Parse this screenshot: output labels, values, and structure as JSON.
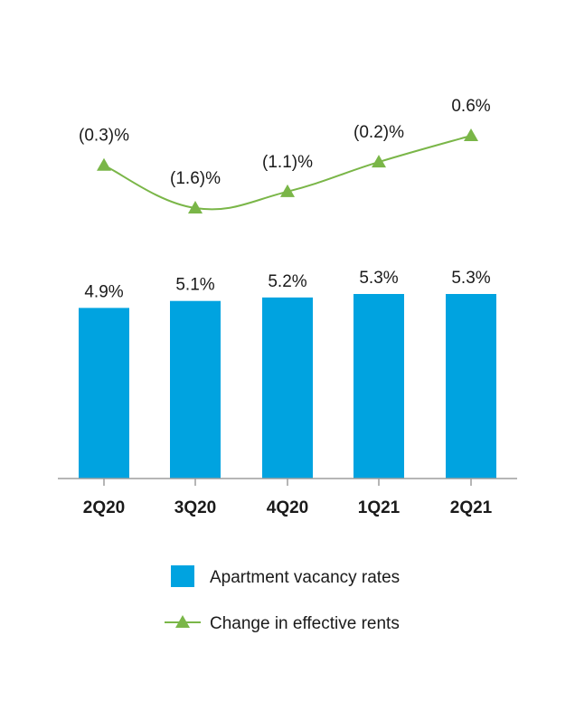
{
  "chart_data": {
    "type": "bar",
    "categories": [
      "2Q20",
      "3Q20",
      "4Q20",
      "1Q21",
      "2Q21"
    ],
    "series": [
      {
        "name": "Apartment vacancy rates",
        "type": "bar",
        "values": [
          4.9,
          5.1,
          5.2,
          5.3,
          5.3
        ],
        "labels": [
          "4.9%",
          "5.1%",
          "5.2%",
          "5.3%",
          "5.3%"
        ],
        "color": "#00a3e0"
      },
      {
        "name": "Change in effective rents",
        "type": "line",
        "marker": "triangle",
        "values": [
          -0.3,
          -1.6,
          -1.1,
          -0.2,
          0.6
        ],
        "labels": [
          "(0.3)%",
          "(1.6)%",
          "(1.1)%",
          "(0.2)%",
          "0.6%"
        ],
        "color": "#7ab648"
      }
    ],
    "bar_ylim": [
      0,
      5.3
    ],
    "line_ylim": [
      -1.6,
      0.6
    ],
    "grid": false,
    "legend": "bottom"
  }
}
